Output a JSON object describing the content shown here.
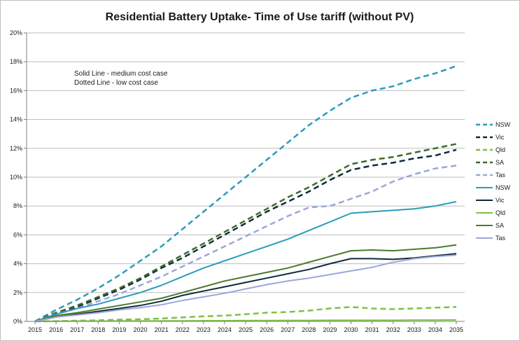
{
  "chart_data": {
    "type": "line",
    "title": "Residential Battery Uptake- Time of Use tariff (without PV)",
    "xlabel": "",
    "ylabel": "",
    "x": [
      "2015",
      "2016",
      "2017",
      "2018",
      "2019",
      "2020",
      "2021",
      "2022",
      "2023",
      "2024",
      "2025",
      "2026",
      "2027",
      "2028",
      "2029",
      "2030",
      "2031",
      "2032",
      "2033",
      "2034",
      "2035"
    ],
    "ylim": [
      0,
      20
    ],
    "y_ticks": [
      "0%",
      "2%",
      "4%",
      "6%",
      "8%",
      "10%",
      "12%",
      "14%",
      "16%",
      "18%",
      "20%"
    ],
    "grid": true,
    "legend_position": "right",
    "annotations": [
      "Solid Line - medium cost case",
      "Dotted Line - low cost case"
    ],
    "series": [
      {
        "name": "NSW",
        "style": "dashed",
        "color": "#2c9cb8",
        "values": [
          0,
          0.8,
          1.5,
          2.3,
          3.2,
          4.2,
          5.2,
          6.4,
          7.6,
          8.8,
          10.0,
          11.2,
          12.4,
          13.6,
          14.6,
          15.5,
          16.0,
          16.3,
          16.8,
          17.2,
          17.7
        ]
      },
      {
        "name": "Vic",
        "style": "dashed",
        "color": "#0f2a3e",
        "values": [
          0,
          0.6,
          1.0,
          1.6,
          2.2,
          2.9,
          3.7,
          4.4,
          5.2,
          6.0,
          6.8,
          7.6,
          8.3,
          9.0,
          9.8,
          10.5,
          10.8,
          11.0,
          11.3,
          11.5,
          11.9
        ]
      },
      {
        "name": "Qld",
        "style": "dashed",
        "color": "#7dc242",
        "values": [
          0,
          0.02,
          0.05,
          0.08,
          0.12,
          0.15,
          0.2,
          0.28,
          0.35,
          0.4,
          0.5,
          0.6,
          0.65,
          0.75,
          0.9,
          1.0,
          0.9,
          0.85,
          0.9,
          0.95,
          1.0
        ]
      },
      {
        "name": "SA",
        "style": "dashed",
        "color": "#3e6b2d",
        "values": [
          0,
          0.6,
          1.1,
          1.7,
          2.3,
          3.0,
          3.8,
          4.6,
          5.4,
          6.2,
          7.0,
          7.8,
          8.6,
          9.3,
          10.1,
          10.9,
          11.2,
          11.4,
          11.7,
          12.0,
          12.3
        ]
      },
      {
        "name": "Tas",
        "style": "dashed",
        "color": "#9ba6db",
        "values": [
          0,
          0.5,
          0.9,
          1.4,
          1.9,
          2.5,
          3.1,
          3.8,
          4.5,
          5.2,
          5.9,
          6.6,
          7.3,
          7.9,
          8.0,
          8.5,
          9.0,
          9.7,
          10.2,
          10.6,
          10.8
        ]
      },
      {
        "name": "NSW",
        "style": "solid",
        "color": "#2c9cb8",
        "values": [
          0,
          0.5,
          0.9,
          1.2,
          1.6,
          2.0,
          2.5,
          3.1,
          3.7,
          4.2,
          4.7,
          5.2,
          5.7,
          6.3,
          6.9,
          7.5,
          7.6,
          7.7,
          7.8,
          8.0,
          8.3
        ]
      },
      {
        "name": "Vic",
        "style": "solid",
        "color": "#0f2a3e",
        "values": [
          0,
          0.3,
          0.5,
          0.7,
          0.9,
          1.1,
          1.4,
          1.8,
          2.1,
          2.4,
          2.7,
          3.0,
          3.3,
          3.6,
          4.0,
          4.35,
          4.35,
          4.3,
          4.4,
          4.55,
          4.7
        ]
      },
      {
        "name": "Qld",
        "style": "solid",
        "color": "#7dc242",
        "values": [
          0,
          0.01,
          0.02,
          0.02,
          0.03,
          0.03,
          0.04,
          0.04,
          0.05,
          0.05,
          0.06,
          0.06,
          0.07,
          0.07,
          0.08,
          0.08,
          0.08,
          0.08,
          0.09,
          0.09,
          0.1
        ]
      },
      {
        "name": "SA",
        "style": "solid",
        "color": "#4a7a2e",
        "values": [
          0,
          0.4,
          0.6,
          0.85,
          1.1,
          1.35,
          1.6,
          2.0,
          2.4,
          2.8,
          3.1,
          3.4,
          3.7,
          4.1,
          4.5,
          4.9,
          4.95,
          4.9,
          5.0,
          5.1,
          5.3
        ]
      },
      {
        "name": "Tas",
        "style": "solid",
        "color": "#9ba6db",
        "values": [
          0,
          0.3,
          0.45,
          0.6,
          0.8,
          0.95,
          1.15,
          1.45,
          1.7,
          1.95,
          2.25,
          2.55,
          2.8,
          3.0,
          3.25,
          3.5,
          3.75,
          4.1,
          4.35,
          4.5,
          4.6
        ]
      }
    ]
  }
}
